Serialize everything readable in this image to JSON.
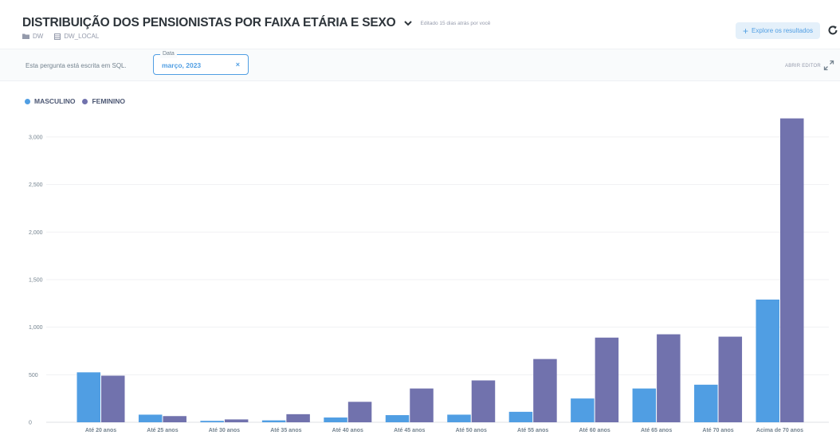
{
  "header": {
    "title": "DISTRIBUIÇÃO DOS PENSIONISTAS POR FAIXA ETÁRIA E SEXO",
    "edited": "Editado 15 dias atrás por você",
    "breadcrumbs": [
      "DW",
      "DW_LOCAL"
    ],
    "explore_label": "Explore os resultados"
  },
  "subbar": {
    "sql_note": "Esta pergunta está escrita em SQL.",
    "filter_label": "Data",
    "filter_value": "março, 2023",
    "filter_clear": "×",
    "open_editor": "ABRIR EDITOR"
  },
  "colors": {
    "accent": "#509ee3",
    "masculino": "#509ee3",
    "feminino": "#7172ad"
  },
  "icons": [
    "chevron-down-icon",
    "folder-icon",
    "database-icon",
    "plus-icon",
    "refresh-icon",
    "expand-icon",
    "close-icon"
  ],
  "chart_data": {
    "type": "bar",
    "categories": [
      "Até 20 anos",
      "Até 25 anos",
      "Até 30 anos",
      "Até 35 anos",
      "Até 40 anos",
      "Até 45 anos",
      "Até 50 anos",
      "Até 55 anos",
      "Até 60 anos",
      "Até 65 anos",
      "Até 70 anos",
      "Acima de 70 anos"
    ],
    "series": [
      {
        "name": "MASCULINO",
        "color": "#509ee3",
        "values": [
          525,
          80,
          15,
          20,
          50,
          75,
          80,
          110,
          250,
          355,
          395,
          1290
        ]
      },
      {
        "name": "FEMININO",
        "color": "#7172ad",
        "values": [
          490,
          65,
          30,
          85,
          215,
          355,
          440,
          665,
          890,
          925,
          900,
          3195
        ]
      }
    ],
    "yticks": [
      0,
      500,
      1000,
      1500,
      2000,
      2500,
      3000
    ],
    "ytick_labels": [
      "0",
      "500",
      "1,000",
      "1,500",
      "2,000",
      "2,500",
      "3,000"
    ],
    "ylim": [
      0,
      3200
    ],
    "grid": true,
    "legend": "top-left"
  }
}
